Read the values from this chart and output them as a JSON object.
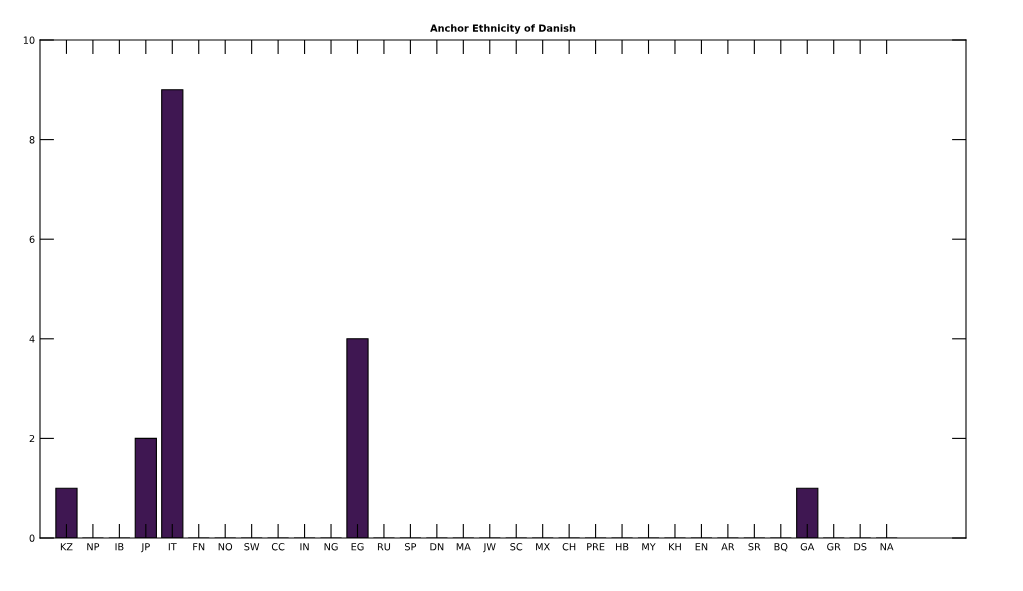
{
  "chart_data": {
    "type": "bar",
    "title": "Anchor Ethnicity of Danish",
    "categories": [
      "KZ",
      "NP",
      "IB",
      "JP",
      "IT",
      "FN",
      "NO",
      "SW",
      "CC",
      "IN",
      "NG",
      "EG",
      "RU",
      "SP",
      "DN",
      "MA",
      "JW",
      "SC",
      "MX",
      "CH",
      "PRE",
      "HB",
      "MY",
      "KH",
      "EN",
      "AR",
      "SR",
      "BQ",
      "GA",
      "GR",
      "DS",
      "NA"
    ],
    "values": [
      1,
      0,
      0,
      2,
      9,
      0,
      0,
      0,
      0,
      0,
      0,
      4,
      0,
      0,
      0,
      0,
      0,
      0,
      0,
      0,
      0,
      0,
      0,
      0,
      0,
      0,
      0,
      0,
      1,
      0,
      0,
      0
    ],
    "color": "#3f1752",
    "ylim": [
      0,
      10
    ],
    "yticks": [
      0,
      2,
      4,
      6,
      8,
      10
    ],
    "grid": false
  }
}
